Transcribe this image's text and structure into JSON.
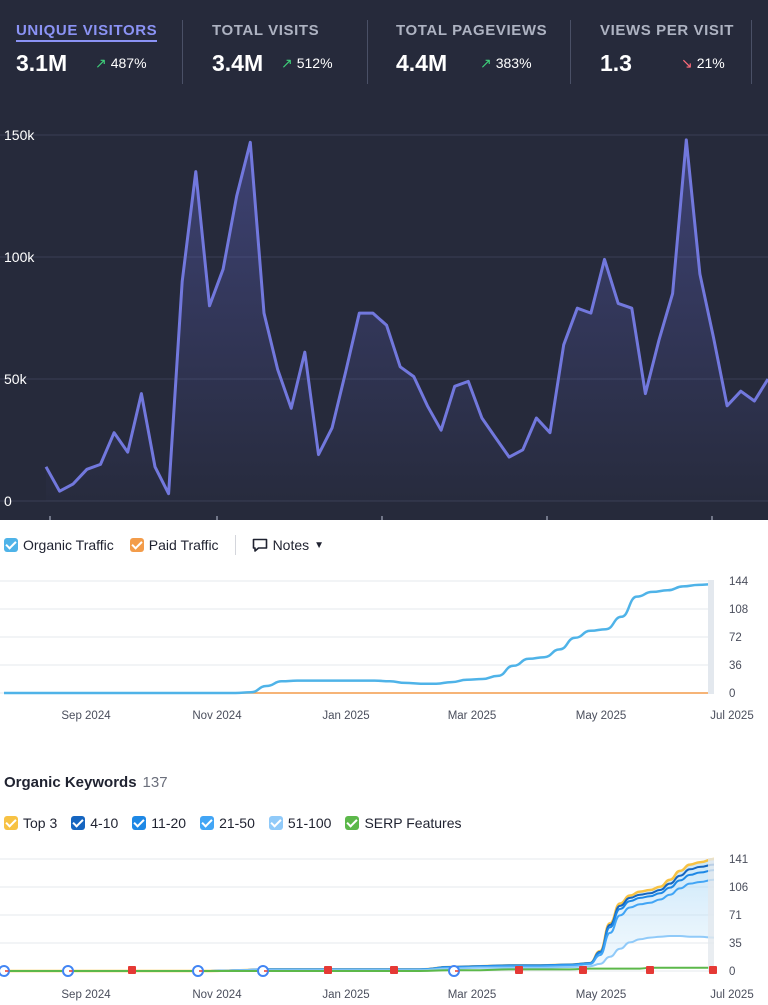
{
  "metrics": [
    {
      "label": "UNIQUE VISITORS",
      "value": "3.1M",
      "change": "487%",
      "direction": "up",
      "active": true
    },
    {
      "label": "TOTAL VISITS",
      "value": "3.4M",
      "change": "512%",
      "direction": "up",
      "active": false
    },
    {
      "label": "TOTAL PAGEVIEWS",
      "value": "4.4M",
      "change": "383%",
      "direction": "up",
      "active": false
    },
    {
      "label": "VIEWS PER VISIT",
      "value": "1.3",
      "change": "21%",
      "direction": "down",
      "active": false
    }
  ],
  "colors": {
    "dark_bg": "#262a3b",
    "visitors_line": "#7278dd",
    "organic": "#4fb3e8",
    "paid": "#f39c4a",
    "top3": "#f7c244",
    "r4_10": "#1565c0",
    "r11_20": "#1e88e5",
    "r21_50": "#42a5f5",
    "r51_100": "#90caf9",
    "serp": "#5cb84a"
  },
  "traffic_legend": {
    "organic_label": "Organic Traffic",
    "paid_label": "Paid Traffic",
    "notes_label": "Notes"
  },
  "keywords": {
    "title": "Organic Keywords",
    "count": "137",
    "legend": [
      "Top 3",
      "4-10",
      "11-20",
      "21-50",
      "51-100",
      "SERP Features"
    ]
  },
  "chart_data": [
    {
      "type": "area",
      "title": "",
      "yticks": [
        "150k",
        "100k",
        "50k",
        "0"
      ],
      "ylim": [
        0,
        150000
      ],
      "series": [
        {
          "name": "",
          "values": [
            14000,
            4000,
            7000,
            13000,
            15000,
            28000,
            20000,
            44000,
            14000,
            3000,
            90000,
            135000,
            80000,
            95000,
            125000,
            147000,
            77000,
            54000,
            38000,
            61000,
            19000,
            30000,
            53000,
            77000,
            77000,
            72000,
            55000,
            51000,
            39000,
            29000,
            47000,
            49000,
            34000,
            26000,
            18000,
            21000,
            34000,
            28000,
            64000,
            79000,
            77000,
            99000,
            81000,
            79000,
            44000,
            66000,
            85000,
            148000,
            93000,
            67000,
            39000,
            45000,
            41000,
            50000
          ]
        }
      ]
    },
    {
      "type": "line",
      "title": "",
      "xticks": [
        "Sep 2024",
        "Nov 2024",
        "Jan 2025",
        "Mar 2025",
        "May 2025",
        "Jul 2025"
      ],
      "yticks": [
        "144",
        "108",
        "72",
        "36",
        "0"
      ],
      "ylim": [
        0,
        144
      ],
      "series": [
        {
          "name": "Organic Traffic",
          "values": [
            0,
            0,
            0,
            0,
            0,
            0,
            0,
            0,
            0,
            0,
            0,
            0,
            0,
            0,
            0,
            0,
            1,
            9,
            15,
            16,
            16,
            16,
            16,
            16,
            16,
            15,
            13,
            12,
            12,
            14,
            17,
            18,
            22,
            35,
            44,
            46,
            56,
            71,
            80,
            82,
            98,
            124,
            130,
            132,
            137,
            139,
            140
          ]
        },
        {
          "name": "Paid Traffic",
          "values": [
            0,
            0,
            0,
            0,
            0,
            0,
            0,
            0,
            0,
            0,
            0,
            0,
            0,
            0,
            0,
            0,
            0,
            0,
            0,
            0,
            0,
            0,
            0,
            0,
            0,
            0,
            0,
            0,
            0,
            0,
            0,
            0,
            0,
            0,
            0,
            0,
            0,
            0,
            0,
            0,
            0,
            0,
            0,
            0,
            0,
            0,
            0
          ]
        }
      ]
    },
    {
      "type": "area",
      "title": "",
      "xticks": [
        "Sep 2024",
        "Nov 2024",
        "Jan 2025",
        "Mar 2025",
        "May 2025",
        "Jul 2025"
      ],
      "yticks": [
        "141",
        "106",
        "71",
        "35",
        "0"
      ],
      "ylim": [
        0,
        141
      ],
      "x": [
        0,
        30,
        60,
        90,
        120,
        150,
        180,
        210,
        240,
        270,
        300,
        330,
        360,
        390,
        420,
        450,
        480,
        510,
        540,
        570,
        590,
        600,
        610,
        620,
        630,
        640,
        650,
        660,
        670,
        680,
        690,
        700,
        714
      ],
      "series": [
        {
          "name": "Top 3",
          "values": [
            0,
            0,
            0,
            0,
            0,
            0,
            0,
            0,
            1,
            2,
            2,
            2,
            2,
            2,
            2,
            5,
            6,
            7,
            7,
            8,
            10,
            25,
            60,
            85,
            95,
            100,
            102,
            106,
            115,
            126,
            134,
            137,
            141
          ]
        },
        {
          "name": "4-10",
          "values": [
            0,
            0,
            0,
            0,
            0,
            0,
            0,
            0,
            1,
            2,
            2,
            2,
            2,
            2,
            2,
            5,
            6,
            7,
            7,
            8,
            10,
            24,
            58,
            82,
            92,
            96,
            98,
            102,
            110,
            120,
            128,
            131,
            134
          ]
        },
        {
          "name": "11-20",
          "values": [
            0,
            0,
            0,
            0,
            0,
            0,
            0,
            0,
            1,
            2,
            2,
            2,
            2,
            2,
            2,
            5,
            6,
            7,
            7,
            8,
            10,
            23,
            55,
            78,
            88,
            92,
            94,
            98,
            105,
            114,
            121,
            124,
            127
          ]
        },
        {
          "name": "21-50",
          "values": [
            0,
            0,
            0,
            0,
            0,
            0,
            0,
            0,
            1,
            2,
            2,
            2,
            2,
            2,
            2,
            4,
            5,
            6,
            6,
            7,
            9,
            20,
            48,
            70,
            80,
            84,
            86,
            90,
            96,
            104,
            110,
            112,
            115
          ]
        },
        {
          "name": "51-100",
          "values": [
            0,
            0,
            0,
            0,
            0,
            0,
            0,
            0,
            1,
            1,
            1,
            1,
            1,
            1,
            1,
            3,
            4,
            4,
            4,
            5,
            6,
            9,
            18,
            28,
            36,
            40,
            42,
            43,
            44,
            44,
            43,
            43,
            42
          ]
        },
        {
          "name": "SERP Features",
          "values": [
            0,
            0,
            0,
            0,
            0,
            0,
            0,
            0,
            0,
            0,
            0,
            0,
            0,
            0,
            0,
            1,
            1,
            2,
            2,
            2,
            3,
            3,
            3,
            3,
            3,
            3,
            4,
            4,
            4,
            4,
            4,
            4,
            4
          ]
        }
      ]
    }
  ]
}
